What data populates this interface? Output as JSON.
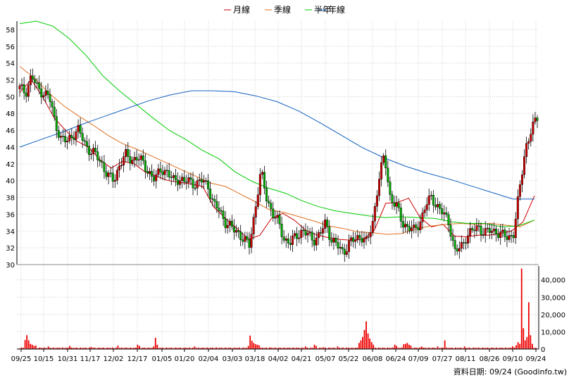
{
  "legend": [
    {
      "label": "月線",
      "color": "#cc0000"
    },
    {
      "label": "季線",
      "color": "#e07020"
    },
    {
      "label": "半年",
      "color": "#00cc00"
    },
    {
      "label": "年線",
      "color": "#1060c0"
    }
  ],
  "footer": "資料日期: 09/24 (Goodinfo.tw)",
  "colors": {
    "up": "#cc0000",
    "down": "#00aa00",
    "grid": "#cccccc",
    "volume": "#ee0000"
  },
  "chart_data": {
    "type": "candlestick",
    "x_ticks": [
      "09/25",
      "10/15",
      "10/31",
      "11/17",
      "12/02",
      "12/17",
      "01/05",
      "01/20",
      "02/04",
      "03/03",
      "03/18",
      "04/02",
      "04/21",
      "05/07",
      "05/22",
      "06/08",
      "06/24",
      "07/09",
      "07/27",
      "08/11",
      "08/26",
      "09/10",
      "09/24"
    ],
    "price_ylim": [
      30,
      59
    ],
    "price_ticks": [
      "30",
      "32",
      "34",
      "36",
      "38",
      "40",
      "42",
      "44",
      "46",
      "48",
      "50",
      "52",
      "54",
      "56",
      "58"
    ],
    "volume_ylim": [
      0,
      48000
    ],
    "volume_ticks": [
      "0",
      "10,000",
      "20,000",
      "30,000",
      "40,000"
    ],
    "price_path": [
      51,
      50.5,
      52.5,
      51,
      50.5,
      50,
      47,
      45,
      44.6,
      45.5,
      46,
      44.5,
      43.5,
      43,
      42,
      40.5,
      40,
      42,
      43,
      42.5,
      42.8,
      42,
      41,
      40,
      41.5,
      41,
      40,
      40.3,
      39.8,
      40,
      39.5,
      40,
      39.5,
      37,
      36.5,
      35,
      34.3,
      34,
      33,
      32.2,
      36.5,
      41,
      38,
      36,
      35,
      33,
      32.5,
      33.5,
      34,
      33.5,
      33,
      33.5,
      35,
      33,
      32.2,
      31.5,
      32.5,
      33,
      33.5,
      32.5,
      35,
      40,
      43,
      38,
      37,
      35,
      34.5,
      34,
      35,
      37,
      38,
      37,
      36,
      35,
      31.5,
      32,
      33.5,
      34,
      34.5,
      33.8,
      34,
      34,
      33.5,
      33.2,
      33.8,
      39,
      44,
      46,
      47.5
    ],
    "moving_averages": {
      "月線": [
        50.5,
        52,
        50,
        47.5,
        46,
        44.7,
        44,
        42.5,
        41.5,
        42.3,
        42,
        41,
        40.5,
        40,
        39.8,
        39.6,
        39.3,
        36.8,
        35.5,
        34.3,
        33,
        33.5,
        35.5,
        36.1,
        35.3,
        34.1,
        33.5,
        33.2,
        33,
        32.9,
        33,
        34.1,
        37.3,
        37.4,
        37.9,
        35.6,
        34.5,
        34.8,
        33.4,
        33.3,
        33.5,
        33.5,
        33.7,
        34,
        35.1,
        38.2
      ],
      "季線": [
        53.6,
        52.2,
        50.4,
        48.9,
        47.7,
        46.6,
        45.4,
        44.4,
        43.7,
        42.9,
        42.1,
        41.3,
        40.5,
        39.7,
        39.3,
        38.4,
        37.5,
        36.5,
        36.2,
        35.7,
        35.2,
        34.6,
        34.3,
        33.9,
        33.8,
        33.6,
        33.7,
        34.3,
        34.6,
        34.8,
        34.9,
        34.8,
        34.9,
        34.7,
        34.5,
        35.3
      ],
      "半年": [
        58.7,
        59,
        58.4,
        56.9,
        54.9,
        52.5,
        50.7,
        49.1,
        47.5,
        46,
        44.9,
        43.6,
        42.6,
        41,
        39.9,
        39.1,
        38.5,
        37.6,
        36.9,
        36.4,
        36.1,
        35.8,
        35.6,
        35.7,
        35.6,
        35.5,
        35.1,
        34.9,
        34.9,
        34.5,
        34.6,
        35.3
      ],
      "年線": [
        44,
        44.9,
        45.8,
        46.8,
        47.7,
        48.6,
        49.5,
        50.2,
        50.7,
        50.7,
        50.6,
        50.1,
        49.4,
        48.3,
        46.9,
        45.4,
        43.9,
        42.7,
        41.7,
        40.9,
        40.2,
        39.4,
        38.6,
        37.8,
        37.8
      ]
    }
  }
}
